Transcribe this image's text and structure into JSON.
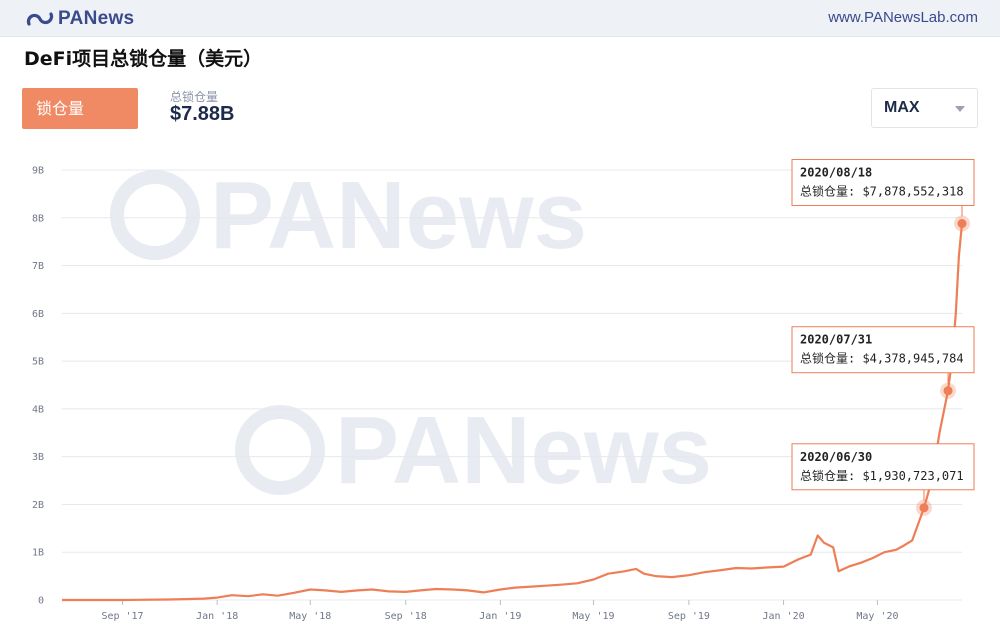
{
  "header": {
    "logo_text": "PANews",
    "url": "www.PANewsLab.com"
  },
  "page_title": "DeFi项目总锁仓量（美元）",
  "tab": {
    "label": "锁仓量"
  },
  "summary": {
    "label": "总锁仓量",
    "value": "$7.88B"
  },
  "range_select": {
    "value": "MAX"
  },
  "colors": {
    "line": "#ee7e56",
    "accent": "#f08a64",
    "grid": "#e6e8ee",
    "watermark": "#d6dce6"
  },
  "watermark_text": "PANews",
  "chart_data": {
    "type": "line",
    "title": "",
    "xlabel": "",
    "ylabel": "",
    "y_unit": "B",
    "ylim": [
      0,
      9
    ],
    "grid": true,
    "y_ticks": [
      {
        "value": 0,
        "label": "0"
      },
      {
        "value": 1,
        "label": "1B"
      },
      {
        "value": 2,
        "label": "2B"
      },
      {
        "value": 3,
        "label": "3B"
      },
      {
        "value": 4,
        "label": "4B"
      },
      {
        "value": 5,
        "label": "5B"
      },
      {
        "value": 6,
        "label": "6B"
      },
      {
        "value": 7,
        "label": "7B"
      },
      {
        "value": 8,
        "label": "8B"
      },
      {
        "value": 9,
        "label": "9B"
      }
    ],
    "x_ticks": [
      {
        "date": "2017-09-01",
        "label": "Sep '17"
      },
      {
        "date": "2018-01-01",
        "label": "Jan '18"
      },
      {
        "date": "2018-05-01",
        "label": "May '18"
      },
      {
        "date": "2018-09-01",
        "label": "Sep '18"
      },
      {
        "date": "2019-01-01",
        "label": "Jan '19"
      },
      {
        "date": "2019-05-01",
        "label": "May '19"
      },
      {
        "date": "2019-09-01",
        "label": "Sep '19"
      },
      {
        "date": "2020-01-01",
        "label": "Jan '20"
      },
      {
        "date": "2020-05-01",
        "label": "May '20"
      }
    ],
    "xlim": [
      "2017-06-15",
      "2020-08-18"
    ],
    "series": [
      {
        "points": [
          [
            "2017-06-15",
            0.0
          ],
          [
            "2017-09-01",
            0.0
          ],
          [
            "2017-11-01",
            0.01
          ],
          [
            "2017-12-15",
            0.03
          ],
          [
            "2018-01-01",
            0.05
          ],
          [
            "2018-01-20",
            0.1
          ],
          [
            "2018-02-10",
            0.08
          ],
          [
            "2018-03-01",
            0.12
          ],
          [
            "2018-03-20",
            0.09
          ],
          [
            "2018-04-10",
            0.15
          ],
          [
            "2018-05-01",
            0.22
          ],
          [
            "2018-05-20",
            0.2
          ],
          [
            "2018-06-10",
            0.17
          ],
          [
            "2018-07-01",
            0.2
          ],
          [
            "2018-07-20",
            0.22
          ],
          [
            "2018-08-10",
            0.18
          ],
          [
            "2018-09-01",
            0.17
          ],
          [
            "2018-09-20",
            0.2
          ],
          [
            "2018-10-10",
            0.23
          ],
          [
            "2018-11-01",
            0.22
          ],
          [
            "2018-11-20",
            0.2
          ],
          [
            "2018-12-10",
            0.16
          ],
          [
            "2019-01-01",
            0.22
          ],
          [
            "2019-01-20",
            0.26
          ],
          [
            "2019-02-10",
            0.28
          ],
          [
            "2019-03-01",
            0.3
          ],
          [
            "2019-03-20",
            0.32
          ],
          [
            "2019-04-10",
            0.35
          ],
          [
            "2019-05-01",
            0.43
          ],
          [
            "2019-05-20",
            0.55
          ],
          [
            "2019-06-10",
            0.6
          ],
          [
            "2019-06-25",
            0.65
          ],
          [
            "2019-07-05",
            0.55
          ],
          [
            "2019-07-20",
            0.5
          ],
          [
            "2019-08-10",
            0.48
          ],
          [
            "2019-09-01",
            0.52
          ],
          [
            "2019-09-20",
            0.58
          ],
          [
            "2019-10-10",
            0.62
          ],
          [
            "2019-11-01",
            0.67
          ],
          [
            "2019-11-20",
            0.66
          ],
          [
            "2019-12-10",
            0.68
          ],
          [
            "2020-01-01",
            0.7
          ],
          [
            "2020-01-20",
            0.85
          ],
          [
            "2020-02-05",
            0.95
          ],
          [
            "2020-02-14",
            1.35
          ],
          [
            "2020-02-22",
            1.2
          ],
          [
            "2020-03-05",
            1.1
          ],
          [
            "2020-03-12",
            0.6
          ],
          [
            "2020-03-25",
            0.7
          ],
          [
            "2020-04-10",
            0.78
          ],
          [
            "2020-04-25",
            0.88
          ],
          [
            "2020-05-10",
            1.0
          ],
          [
            "2020-05-25",
            1.05
          ],
          [
            "2020-06-05",
            1.15
          ],
          [
            "2020-06-15",
            1.25
          ],
          [
            "2020-06-30",
            1.93
          ],
          [
            "2020-07-10",
            2.5
          ],
          [
            "2020-07-20",
            3.5
          ],
          [
            "2020-07-31",
            4.38
          ],
          [
            "2020-08-05",
            5.0
          ],
          [
            "2020-08-10",
            6.0
          ],
          [
            "2020-08-14",
            7.2
          ],
          [
            "2020-08-18",
            7.88
          ]
        ]
      }
    ],
    "annotations": [
      {
        "date": "2020/06/30",
        "label": "总锁仓量:",
        "value_text": "$1,930,723,071",
        "x": "2020-06-30",
        "y": 1.93
      },
      {
        "date": "2020/07/31",
        "label": "总锁仓量:",
        "value_text": "$4,378,945,784",
        "x": "2020-07-31",
        "y": 4.38
      },
      {
        "date": "2020/08/18",
        "label": "总锁仓量:",
        "value_text": "$7,878,552,318",
        "x": "2020-08-18",
        "y": 7.88
      }
    ]
  }
}
